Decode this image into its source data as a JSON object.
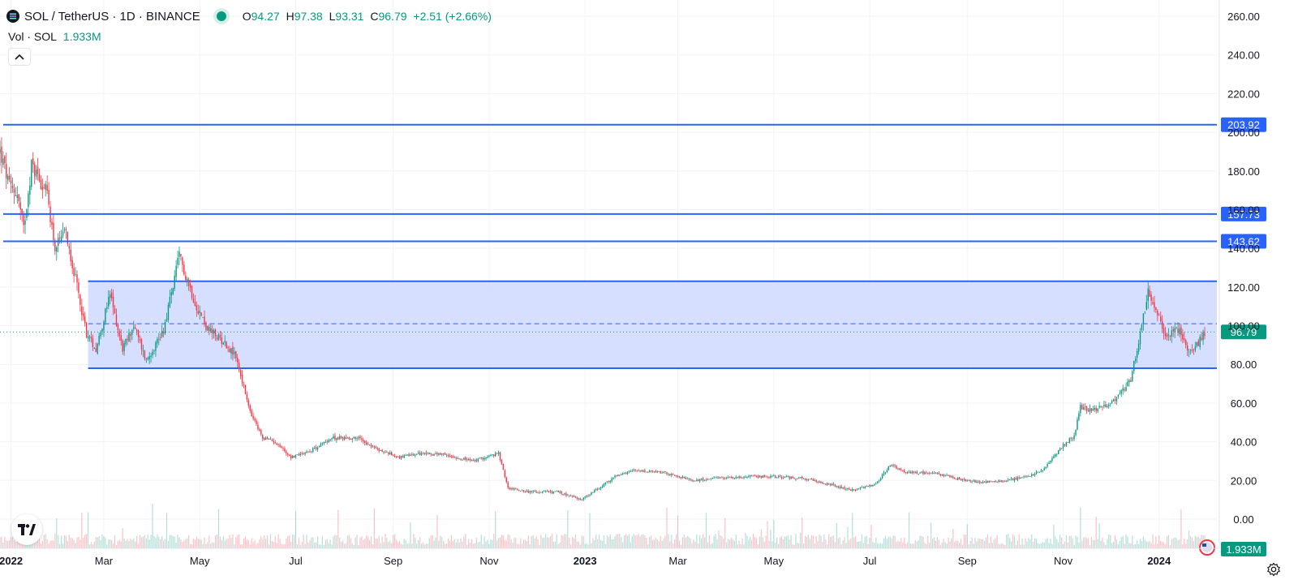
{
  "header": {
    "title": "SOL / TetherUS · 1D · BINANCE",
    "ohlc": {
      "o_label": "O",
      "o": "94.27",
      "h_label": "H",
      "h": "97.38",
      "l_label": "L",
      "l": "93.31",
      "c_label": "C",
      "c": "96.79",
      "change": "+2.51 (+2.66%)"
    }
  },
  "volume_legend": {
    "label": "Vol · SOL",
    "value": "1.933M"
  },
  "icons": {
    "collapse": "chevron-up-icon",
    "brand": "tradingview-logo-icon",
    "settings": "gear-icon",
    "currency": "us-flag-icon"
  },
  "colors": {
    "up": "#089981",
    "down": "#f23645",
    "level_line": "#2962ff",
    "zone_fill": "#d2dcff"
  },
  "chart_data": {
    "type": "candlestick",
    "symbol": "SOL / TetherUS",
    "interval": "1D",
    "exchange": "BINANCE",
    "y_axis": {
      "min": 0,
      "max": 260,
      "ticks": [
        "0.00",
        "20.00",
        "40.00",
        "60.00",
        "80.00",
        "100.00",
        "120.00",
        "140.00",
        "160.00",
        "180.00",
        "200.00",
        "220.00",
        "240.00",
        "260.00"
      ]
    },
    "x_axis": {
      "start": "2021-12-25",
      "end": "2024-01-30",
      "ticks": [
        {
          "label": "2022",
          "date": "2022-01-01",
          "bold": true
        },
        {
          "label": "Mar",
          "date": "2022-03-01"
        },
        {
          "label": "May",
          "date": "2022-05-01"
        },
        {
          "label": "Jul",
          "date": "2022-07-01"
        },
        {
          "label": "Sep",
          "date": "2022-09-01"
        },
        {
          "label": "Nov",
          "date": "2022-11-01"
        },
        {
          "label": "2023",
          "date": "2023-01-01",
          "bold": true
        },
        {
          "label": "Mar",
          "date": "2023-03-01"
        },
        {
          "label": "May",
          "date": "2023-05-01"
        },
        {
          "label": "Jul",
          "date": "2023-07-01"
        },
        {
          "label": "Sep",
          "date": "2023-09-01"
        },
        {
          "label": "Nov",
          "date": "2023-11-01"
        },
        {
          "label": "2024",
          "date": "2024-01-01",
          "bold": true
        }
      ]
    },
    "close_path": [
      {
        "date": "2021-12-25",
        "close": 190
      },
      {
        "date": "2021-12-31",
        "close": 172
      },
      {
        "date": "2022-01-05",
        "close": 168
      },
      {
        "date": "2022-01-09",
        "close": 150
      },
      {
        "date": "2022-01-14",
        "close": 183
      },
      {
        "date": "2022-01-18",
        "close": 178
      },
      {
        "date": "2022-01-24",
        "close": 168
      },
      {
        "date": "2022-01-29",
        "close": 140
      },
      {
        "date": "2022-02-05",
        "close": 148
      },
      {
        "date": "2022-02-12",
        "close": 120
      },
      {
        "date": "2022-02-18",
        "close": 96
      },
      {
        "date": "2022-02-24",
        "close": 88
      },
      {
        "date": "2022-03-05",
        "close": 116
      },
      {
        "date": "2022-03-13",
        "close": 88
      },
      {
        "date": "2022-03-20",
        "close": 100
      },
      {
        "date": "2022-03-28",
        "close": 82
      },
      {
        "date": "2022-04-08",
        "close": 98
      },
      {
        "date": "2022-04-18",
        "close": 136
      },
      {
        "date": "2022-04-28",
        "close": 112
      },
      {
        "date": "2022-05-06",
        "close": 98
      },
      {
        "date": "2022-05-16",
        "close": 92
      },
      {
        "date": "2022-05-24",
        "close": 84
      },
      {
        "date": "2022-06-02",
        "close": 55
      },
      {
        "date": "2022-06-10",
        "close": 42
      },
      {
        "date": "2022-06-18",
        "close": 40
      },
      {
        "date": "2022-06-28",
        "close": 32
      },
      {
        "date": "2022-07-12",
        "close": 36
      },
      {
        "date": "2022-07-24",
        "close": 42
      },
      {
        "date": "2022-08-10",
        "close": 42
      },
      {
        "date": "2022-08-22",
        "close": 36
      },
      {
        "date": "2022-09-05",
        "close": 32
      },
      {
        "date": "2022-09-20",
        "close": 34
      },
      {
        "date": "2022-10-05",
        "close": 33
      },
      {
        "date": "2022-10-22",
        "close": 30
      },
      {
        "date": "2022-11-07",
        "close": 34
      },
      {
        "date": "2022-11-13",
        "close": 16
      },
      {
        "date": "2022-11-28",
        "close": 14
      },
      {
        "date": "2022-12-15",
        "close": 14
      },
      {
        "date": "2022-12-29",
        "close": 10
      },
      {
        "date": "2023-01-10",
        "close": 16
      },
      {
        "date": "2023-01-20",
        "close": 22
      },
      {
        "date": "2023-02-01",
        "close": 25
      },
      {
        "date": "2023-02-20",
        "close": 24
      },
      {
        "date": "2023-03-10",
        "close": 20
      },
      {
        "date": "2023-03-25",
        "close": 21
      },
      {
        "date": "2023-04-15",
        "close": 22
      },
      {
        "date": "2023-05-01",
        "close": 22
      },
      {
        "date": "2023-05-20",
        "close": 21
      },
      {
        "date": "2023-06-10",
        "close": 17
      },
      {
        "date": "2023-06-20",
        "close": 15
      },
      {
        "date": "2023-07-05",
        "close": 18
      },
      {
        "date": "2023-07-14",
        "close": 28
      },
      {
        "date": "2023-07-25",
        "close": 24
      },
      {
        "date": "2023-08-10",
        "close": 24
      },
      {
        "date": "2023-08-25",
        "close": 21
      },
      {
        "date": "2023-09-10",
        "close": 19
      },
      {
        "date": "2023-09-25",
        "close": 20
      },
      {
        "date": "2023-10-10",
        "close": 22
      },
      {
        "date": "2023-10-20",
        "close": 26
      },
      {
        "date": "2023-11-01",
        "close": 38
      },
      {
        "date": "2023-11-08",
        "close": 43
      },
      {
        "date": "2023-11-12",
        "close": 58
      },
      {
        "date": "2023-11-20",
        "close": 56
      },
      {
        "date": "2023-12-01",
        "close": 60
      },
      {
        "date": "2023-12-10",
        "close": 68
      },
      {
        "date": "2023-12-14",
        "close": 72
      },
      {
        "date": "2023-12-20",
        "close": 96
      },
      {
        "date": "2023-12-25",
        "close": 118
      },
      {
        "date": "2023-12-30",
        "close": 108
      },
      {
        "date": "2024-01-05",
        "close": 94
      },
      {
        "date": "2024-01-12",
        "close": 100
      },
      {
        "date": "2024-01-18",
        "close": 90
      },
      {
        "date": "2024-01-22",
        "close": 86
      },
      {
        "date": "2024-01-30",
        "close": 96.79
      }
    ],
    "horizontal_levels": [
      {
        "price": 203.92,
        "label": "203.92"
      },
      {
        "price": 157.73,
        "label": "157.73"
      },
      {
        "price": 143.62,
        "label": "143.62"
      }
    ],
    "range_zone": {
      "start": "2022-02-19",
      "end": "2024-01-30",
      "top": 123,
      "bottom": 78,
      "mid": 101
    },
    "last_price": {
      "value": 96.79,
      "label": "96.79"
    },
    "volume": {
      "last": "1.933M"
    }
  }
}
